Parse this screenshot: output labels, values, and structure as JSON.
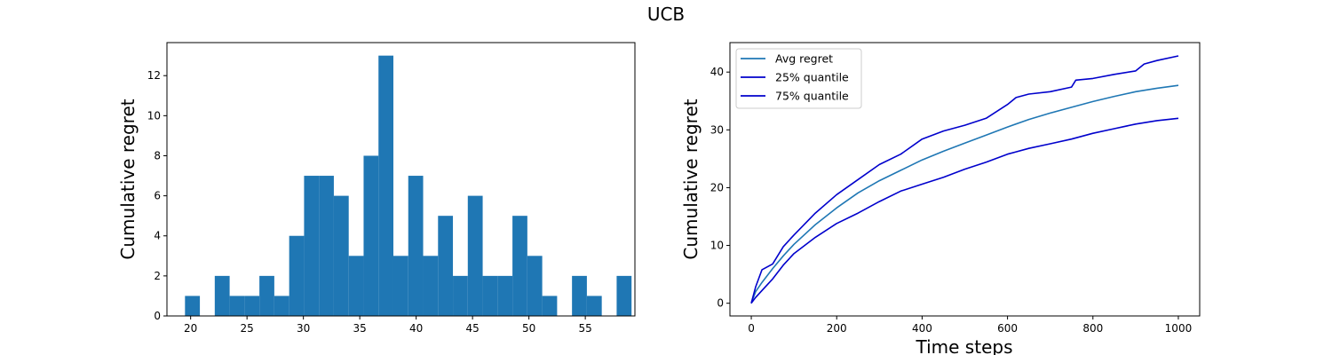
{
  "figure": {
    "title": "UCB"
  },
  "chart_data": [
    {
      "type": "bar",
      "subtype": "histogram",
      "xlabel": "",
      "ylabel": "Cumulative regret",
      "xlim": [
        17.9,
        59.4
      ],
      "ylim": [
        0,
        13.65
      ],
      "xticks": [
        20,
        25,
        30,
        35,
        40,
        45,
        50,
        55
      ],
      "yticks": [
        0,
        2,
        4,
        6,
        8,
        10,
        12
      ],
      "bar_color": "#1f77b4",
      "bin_start": 19.5,
      "bin_width": 1.32,
      "counts": [
        1,
        0,
        2,
        1,
        1,
        2,
        1,
        4,
        7,
        7,
        6,
        3,
        8,
        13,
        3,
        7,
        3,
        5,
        2,
        6,
        2,
        2,
        5,
        3,
        1,
        0,
        2,
        1,
        0,
        2
      ],
      "grid": false
    },
    {
      "type": "line",
      "xlabel": "Time steps",
      "ylabel": "Cumulative regret",
      "xlim": [
        -50,
        1050
      ],
      "ylim": [
        -2.2,
        45.1
      ],
      "xticks": [
        0,
        200,
        400,
        600,
        800,
        1000
      ],
      "yticks": [
        0,
        10,
        20,
        30,
        40
      ],
      "legend_position": "top-left",
      "grid": false,
      "series": [
        {
          "name": "Avg regret",
          "color": "#1f77b4",
          "x": [
            0,
            10,
            25,
            50,
            75,
            100,
            150,
            200,
            250,
            300,
            350,
            400,
            450,
            500,
            550,
            600,
            650,
            700,
            750,
            800,
            850,
            900,
            950,
            1000
          ],
          "y": [
            0,
            2.0,
            3.6,
            6.0,
            8.2,
            10.2,
            13.6,
            16.5,
            19.1,
            21.2,
            23.0,
            24.8,
            26.3,
            27.7,
            29.1,
            30.5,
            31.8,
            32.9,
            33.9,
            34.9,
            35.8,
            36.6,
            37.2,
            37.7
          ]
        },
        {
          "name": "25% quantile",
          "color": "#0000cc",
          "x": [
            0,
            10,
            25,
            50,
            75,
            100,
            150,
            200,
            250,
            300,
            350,
            400,
            450,
            500,
            550,
            600,
            620,
            650,
            700,
            750,
            760,
            800,
            850,
            900,
            920,
            950,
            1000
          ],
          "y": [
            0,
            2.8,
            5.8,
            6.8,
            9.8,
            11.8,
            15.6,
            18.8,
            21.4,
            24.0,
            25.8,
            28.4,
            29.8,
            30.8,
            32.0,
            34.4,
            35.6,
            36.2,
            36.6,
            37.4,
            38.6,
            38.9,
            39.6,
            40.2,
            41.4,
            42.0,
            42.8
          ]
        },
        {
          "name": "75% quantile",
          "color": "#0000cc",
          "x": [
            0,
            10,
            25,
            50,
            75,
            100,
            150,
            200,
            250,
            300,
            350,
            400,
            450,
            500,
            550,
            600,
            650,
            700,
            750,
            800,
            850,
            900,
            950,
            1000
          ],
          "y": [
            0,
            1.0,
            2.2,
            4.2,
            6.6,
            8.6,
            11.4,
            13.8,
            15.6,
            17.6,
            19.4,
            20.6,
            21.8,
            23.2,
            24.4,
            25.8,
            26.8,
            27.6,
            28.4,
            29.4,
            30.2,
            31.0,
            31.6,
            32.0
          ]
        }
      ]
    }
  ]
}
